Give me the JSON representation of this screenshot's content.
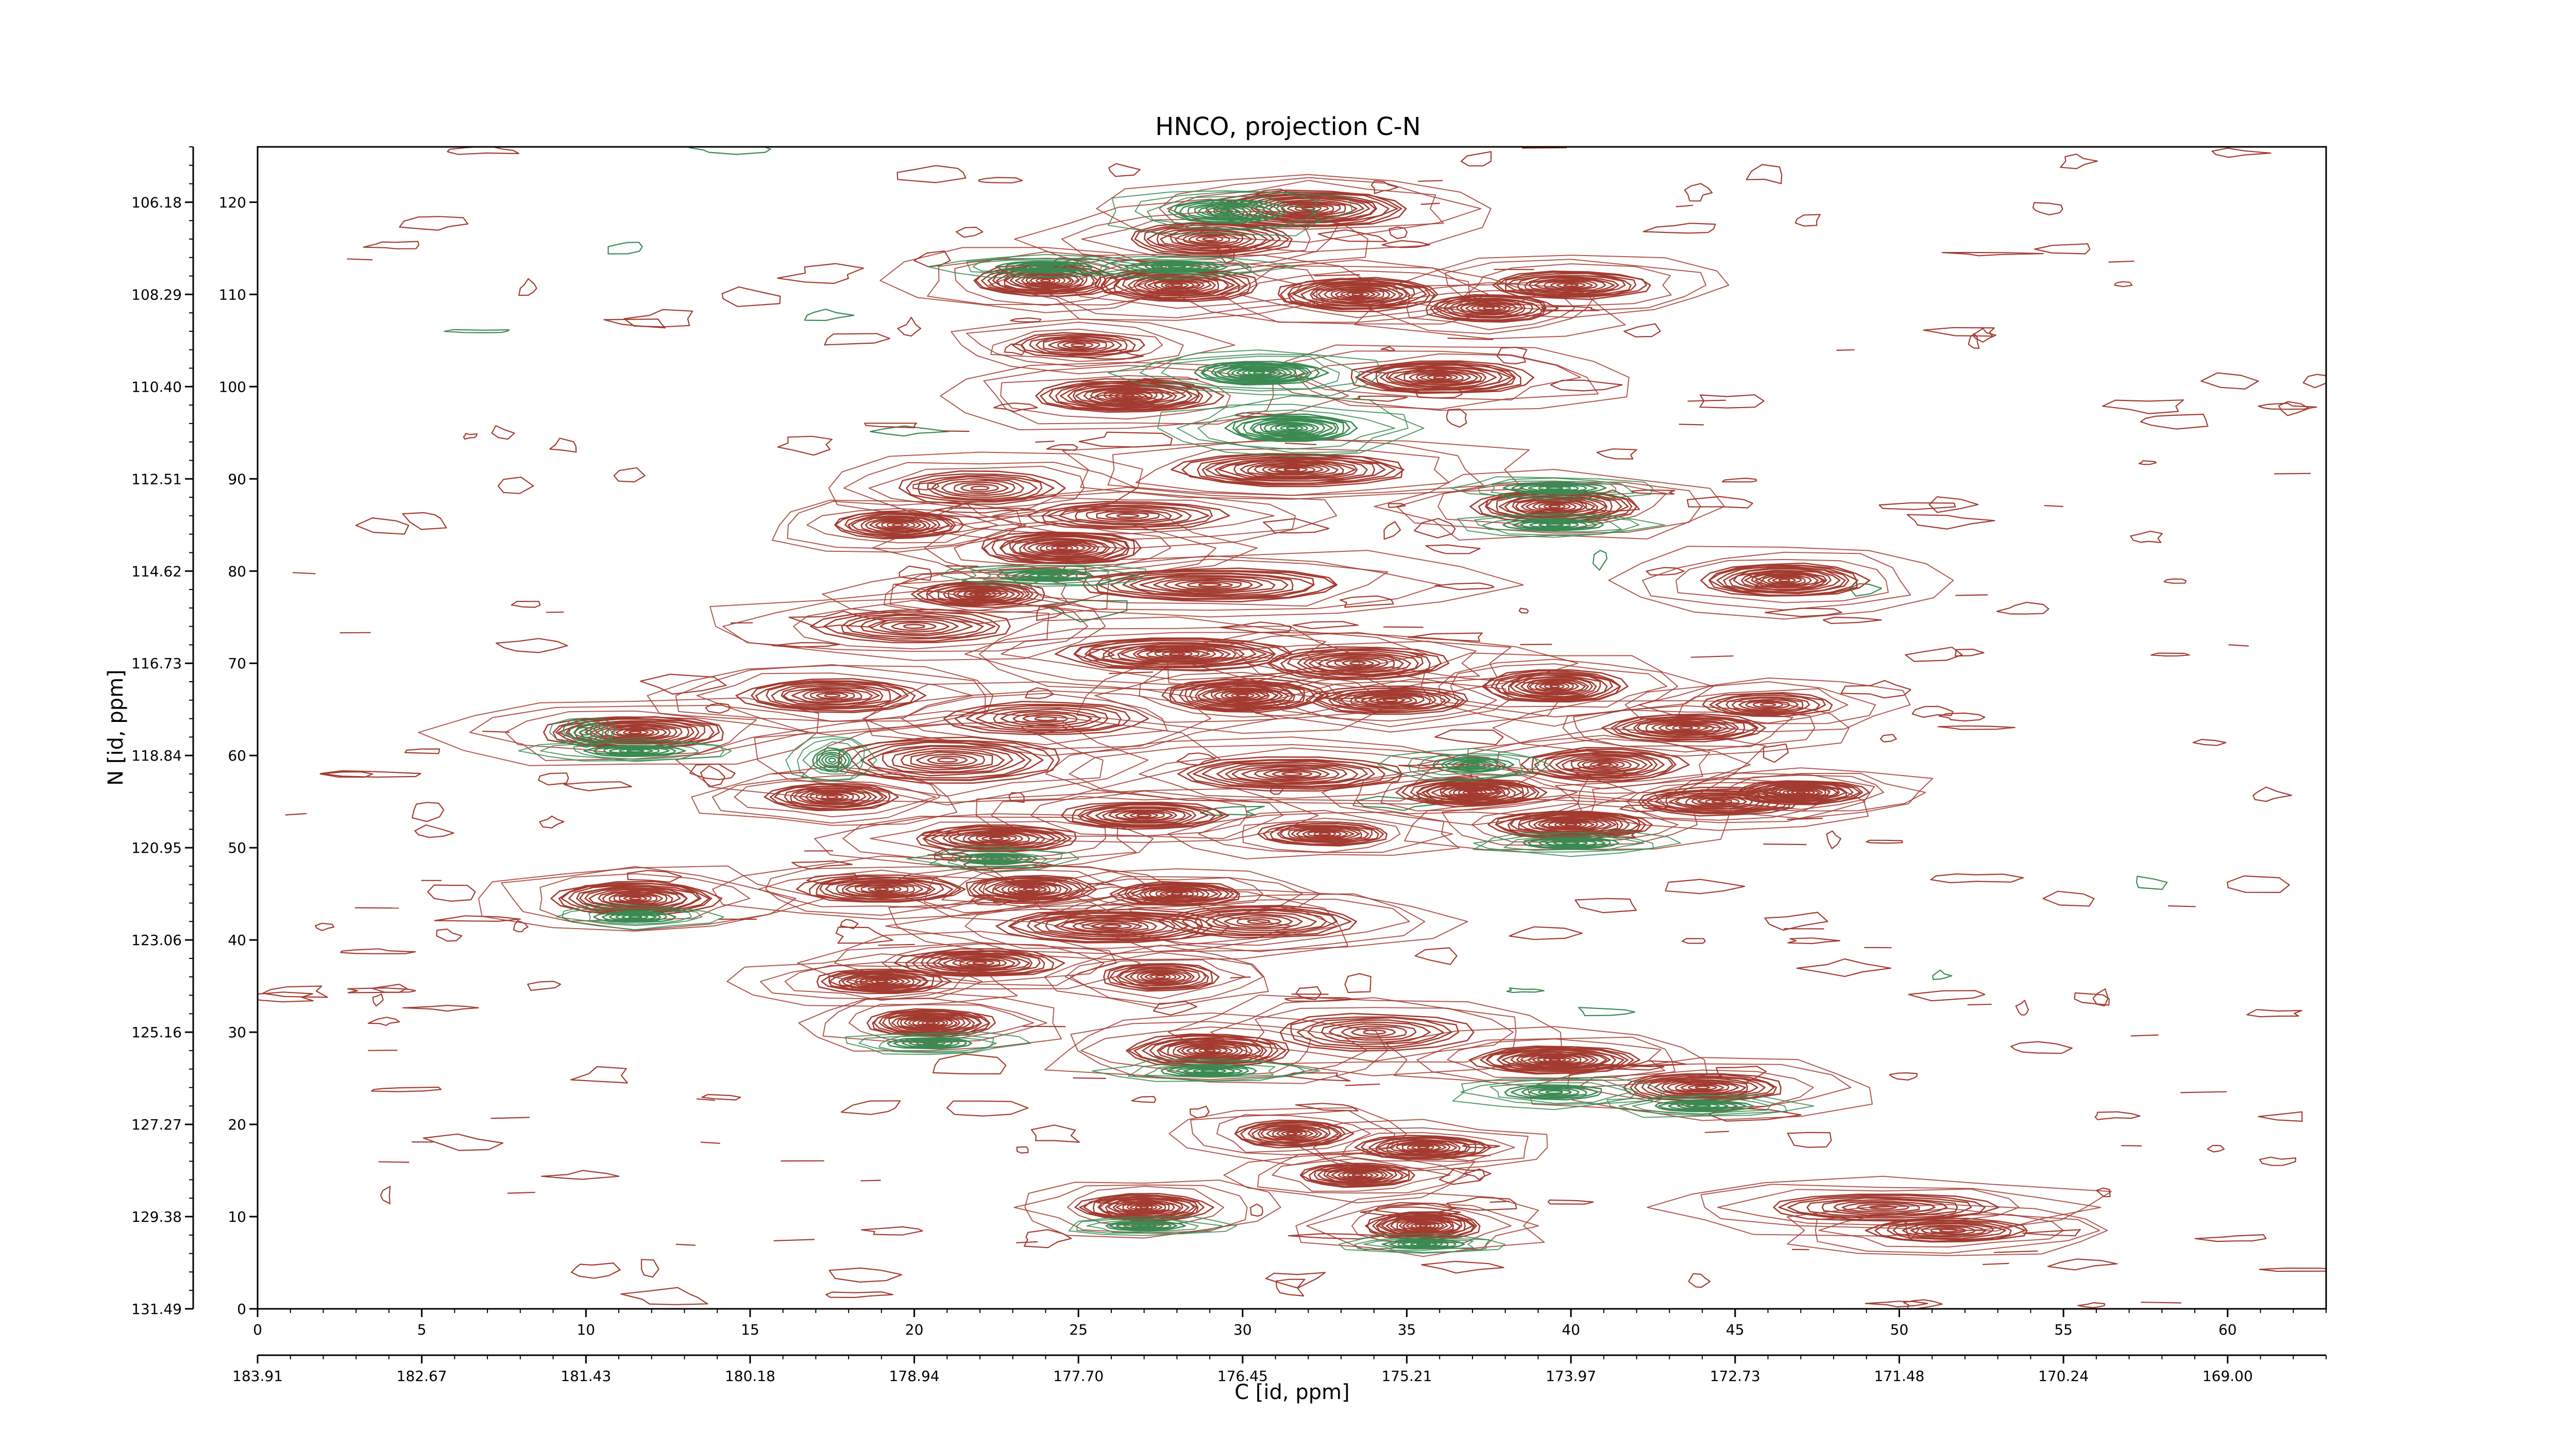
{
  "chart_data": {
    "type": "contour",
    "title": "HNCO, projection C-N",
    "xlabel": "C [id, ppm]",
    "ylabel": "N [id, ppm]",
    "xlim": [
      0,
      63
    ],
    "ylim": [
      0,
      126
    ],
    "x_ticks": [
      0,
      5,
      10,
      15,
      20,
      25,
      30,
      35,
      40,
      45,
      50,
      55,
      60
    ],
    "y_ticks": [
      0,
      10,
      20,
      30,
      40,
      50,
      60,
      70,
      80,
      90,
      100,
      110,
      120
    ],
    "x_ppm_ticks": [
      "183.91",
      "182.67",
      "181.43",
      "180.18",
      "178.94",
      "177.70",
      "176.45",
      "175.21",
      "173.97",
      "172.73",
      "171.48",
      "170.24",
      "169.00"
    ],
    "y_ppm_ticks": [
      "131.49",
      "129.38",
      "127.27",
      "125.16",
      "123.06",
      "120.95",
      "118.84",
      "116.73",
      "114.62",
      "112.51",
      "110.40",
      "108.29",
      "106.18"
    ],
    "colors": {
      "positive": "#a33b30",
      "negative": "#3a8a52"
    },
    "grid": false,
    "peaks": [
      {
        "x": 32.0,
        "y": 119.3,
        "rx": 3.0,
        "ry": 2.0,
        "levels": 5,
        "sign": "pos"
      },
      {
        "x": 29.0,
        "y": 116.0,
        "rx": 2.5,
        "ry": 1.8,
        "levels": 4,
        "sign": "pos"
      },
      {
        "x": 24.0,
        "y": 111.5,
        "rx": 2.2,
        "ry": 1.8,
        "levels": 5,
        "sign": "pos"
      },
      {
        "x": 28.0,
        "y": 111.0,
        "rx": 2.5,
        "ry": 1.8,
        "levels": 5,
        "sign": "pos"
      },
      {
        "x": 33.5,
        "y": 110.0,
        "rx": 2.5,
        "ry": 1.8,
        "levels": 5,
        "sign": "pos"
      },
      {
        "x": 37.5,
        "y": 108.5,
        "rx": 2.0,
        "ry": 1.5,
        "levels": 4,
        "sign": "pos"
      },
      {
        "x": 40.0,
        "y": 111.0,
        "rx": 2.5,
        "ry": 1.5,
        "levels": 4,
        "sign": "pos"
      },
      {
        "x": 25.0,
        "y": 104.5,
        "rx": 2.0,
        "ry": 1.3,
        "levels": 3,
        "sign": "pos"
      },
      {
        "x": 26.5,
        "y": 99.0,
        "rx": 2.8,
        "ry": 1.8,
        "levels": 5,
        "sign": "pos"
      },
      {
        "x": 36.0,
        "y": 101.0,
        "rx": 2.8,
        "ry": 1.8,
        "levels": 5,
        "sign": "pos"
      },
      {
        "x": 31.5,
        "y": 91.0,
        "rx": 3.5,
        "ry": 1.8,
        "levels": 5,
        "sign": "pos"
      },
      {
        "x": 39.5,
        "y": 87.0,
        "rx": 2.5,
        "ry": 1.8,
        "levels": 5,
        "sign": "pos"
      },
      {
        "x": 22.0,
        "y": 89.0,
        "rx": 2.5,
        "ry": 1.8,
        "levels": 3,
        "sign": "pos"
      },
      {
        "x": 19.5,
        "y": 85.0,
        "rx": 2.0,
        "ry": 1.5,
        "levels": 4,
        "sign": "pos"
      },
      {
        "x": 24.5,
        "y": 82.5,
        "rx": 2.5,
        "ry": 1.8,
        "levels": 5,
        "sign": "pos"
      },
      {
        "x": 26.5,
        "y": 86.0,
        "rx": 3.0,
        "ry": 1.5,
        "levels": 3,
        "sign": "pos"
      },
      {
        "x": 46.5,
        "y": 79.0,
        "rx": 2.5,
        "ry": 1.8,
        "levels": 5,
        "sign": "pos"
      },
      {
        "x": 22.0,
        "y": 77.5,
        "rx": 2.0,
        "ry": 1.4,
        "levels": 4,
        "sign": "pos"
      },
      {
        "x": 29.0,
        "y": 78.5,
        "rx": 4.0,
        "ry": 1.8,
        "levels": 4,
        "sign": "pos"
      },
      {
        "x": 20.0,
        "y": 74.0,
        "rx": 3.0,
        "ry": 1.8,
        "levels": 3,
        "sign": "pos"
      },
      {
        "x": 28.0,
        "y": 71.0,
        "rx": 3.5,
        "ry": 1.8,
        "levels": 5,
        "sign": "pos"
      },
      {
        "x": 33.5,
        "y": 70.0,
        "rx": 2.8,
        "ry": 1.8,
        "levels": 4,
        "sign": "pos"
      },
      {
        "x": 17.5,
        "y": 66.5,
        "rx": 2.8,
        "ry": 1.8,
        "levels": 4,
        "sign": "pos"
      },
      {
        "x": 30.0,
        "y": 66.5,
        "rx": 2.5,
        "ry": 1.8,
        "levels": 5,
        "sign": "pos"
      },
      {
        "x": 34.5,
        "y": 66.0,
        "rx": 2.5,
        "ry": 1.5,
        "levels": 4,
        "sign": "pos"
      },
      {
        "x": 39.5,
        "y": 67.5,
        "rx": 2.2,
        "ry": 1.8,
        "levels": 5,
        "sign": "pos"
      },
      {
        "x": 11.5,
        "y": 62.5,
        "rx": 2.8,
        "ry": 1.8,
        "levels": 5,
        "sign": "pos"
      },
      {
        "x": 24.0,
        "y": 64.0,
        "rx": 3.0,
        "ry": 1.8,
        "levels": 3,
        "sign": "pos"
      },
      {
        "x": 43.5,
        "y": 63.0,
        "rx": 2.5,
        "ry": 1.5,
        "levels": 4,
        "sign": "pos"
      },
      {
        "x": 46.0,
        "y": 65.5,
        "rx": 2.0,
        "ry": 1.3,
        "levels": 3,
        "sign": "pos"
      },
      {
        "x": 21.0,
        "y": 59.5,
        "rx": 3.5,
        "ry": 2.5,
        "levels": 4,
        "sign": "pos"
      },
      {
        "x": 31.5,
        "y": 58.0,
        "rx": 3.5,
        "ry": 1.8,
        "levels": 4,
        "sign": "pos"
      },
      {
        "x": 37.0,
        "y": 56.0,
        "rx": 2.2,
        "ry": 1.5,
        "levels": 5,
        "sign": "pos"
      },
      {
        "x": 41.0,
        "y": 59.0,
        "rx": 2.5,
        "ry": 1.8,
        "levels": 4,
        "sign": "pos"
      },
      {
        "x": 44.5,
        "y": 55.0,
        "rx": 2.5,
        "ry": 1.5,
        "levels": 4,
        "sign": "pos"
      },
      {
        "x": 47.0,
        "y": 56.0,
        "rx": 2.0,
        "ry": 1.3,
        "levels": 5,
        "sign": "pos"
      },
      {
        "x": 17.5,
        "y": 55.5,
        "rx": 2.0,
        "ry": 1.5,
        "levels": 4,
        "sign": "pos"
      },
      {
        "x": 22.5,
        "y": 51.0,
        "rx": 2.5,
        "ry": 1.5,
        "levels": 4,
        "sign": "pos"
      },
      {
        "x": 27.0,
        "y": 53.5,
        "rx": 2.5,
        "ry": 1.5,
        "levels": 4,
        "sign": "pos"
      },
      {
        "x": 32.5,
        "y": 51.5,
        "rx": 2.0,
        "ry": 1.3,
        "levels": 4,
        "sign": "pos"
      },
      {
        "x": 40.0,
        "y": 52.5,
        "rx": 2.5,
        "ry": 1.5,
        "levels": 5,
        "sign": "pos"
      },
      {
        "x": 11.5,
        "y": 44.5,
        "rx": 2.5,
        "ry": 1.8,
        "levels": 5,
        "sign": "pos"
      },
      {
        "x": 19.0,
        "y": 45.5,
        "rx": 2.5,
        "ry": 1.5,
        "levels": 4,
        "sign": "pos"
      },
      {
        "x": 23.5,
        "y": 45.5,
        "rx": 2.0,
        "ry": 1.5,
        "levels": 4,
        "sign": "pos"
      },
      {
        "x": 28.0,
        "y": 45.0,
        "rx": 2.0,
        "ry": 1.3,
        "levels": 4,
        "sign": "pos"
      },
      {
        "x": 26.0,
        "y": 41.5,
        "rx": 3.5,
        "ry": 1.8,
        "levels": 4,
        "sign": "pos"
      },
      {
        "x": 30.5,
        "y": 42.0,
        "rx": 3.0,
        "ry": 1.8,
        "levels": 3,
        "sign": "pos"
      },
      {
        "x": 19.0,
        "y": 35.5,
        "rx": 2.0,
        "ry": 1.3,
        "levels": 4,
        "sign": "pos"
      },
      {
        "x": 22.0,
        "y": 37.5,
        "rx": 2.5,
        "ry": 1.5,
        "levels": 4,
        "sign": "pos"
      },
      {
        "x": 27.5,
        "y": 36.0,
        "rx": 1.8,
        "ry": 1.5,
        "levels": 4,
        "sign": "pos"
      },
      {
        "x": 20.5,
        "y": 31.0,
        "rx": 2.0,
        "ry": 1.5,
        "levels": 5,
        "sign": "pos"
      },
      {
        "x": 29.0,
        "y": 28.0,
        "rx": 2.5,
        "ry": 1.8,
        "levels": 5,
        "sign": "pos"
      },
      {
        "x": 34.0,
        "y": 30.0,
        "rx": 3.0,
        "ry": 2.0,
        "levels": 3,
        "sign": "pos"
      },
      {
        "x": 39.5,
        "y": 27.0,
        "rx": 2.5,
        "ry": 1.5,
        "levels": 5,
        "sign": "pos"
      },
      {
        "x": 44.0,
        "y": 24.0,
        "rx": 2.5,
        "ry": 1.5,
        "levels": 4,
        "sign": "pos"
      },
      {
        "x": 31.5,
        "y": 19.0,
        "rx": 1.8,
        "ry": 1.5,
        "levels": 4,
        "sign": "pos"
      },
      {
        "x": 35.5,
        "y": 17.5,
        "rx": 2.0,
        "ry": 1.3,
        "levels": 4,
        "sign": "pos"
      },
      {
        "x": 33.5,
        "y": 14.5,
        "rx": 1.8,
        "ry": 1.3,
        "levels": 4,
        "sign": "pos"
      },
      {
        "x": 27.0,
        "y": 11.0,
        "rx": 2.0,
        "ry": 1.5,
        "levels": 5,
        "sign": "pos"
      },
      {
        "x": 35.5,
        "y": 9.0,
        "rx": 1.8,
        "ry": 1.5,
        "levels": 5,
        "sign": "pos"
      },
      {
        "x": 49.5,
        "y": 11.0,
        "rx": 3.5,
        "ry": 1.5,
        "levels": 3,
        "sign": "pos"
      },
      {
        "x": 51.5,
        "y": 8.5,
        "rx": 2.5,
        "ry": 1.3,
        "levels": 3,
        "sign": "pos"
      },
      {
        "x": 29.5,
        "y": 119.0,
        "rx": 1.8,
        "ry": 1.3,
        "levels": 3,
        "sign": "neg"
      },
      {
        "x": 30.5,
        "y": 101.5,
        "rx": 2.0,
        "ry": 1.3,
        "levels": 4,
        "sign": "neg"
      },
      {
        "x": 31.5,
        "y": 95.5,
        "rx": 2.0,
        "ry": 1.5,
        "levels": 4,
        "sign": "neg"
      },
      {
        "x": 24.0,
        "y": 113.0,
        "rx": 1.5,
        "ry": 0.6,
        "levels": 2,
        "sign": "neg"
      },
      {
        "x": 28.0,
        "y": 113.0,
        "rx": 1.5,
        "ry": 0.6,
        "levels": 2,
        "sign": "neg"
      },
      {
        "x": 39.5,
        "y": 85.0,
        "rx": 1.5,
        "ry": 0.6,
        "levels": 2,
        "sign": "neg"
      },
      {
        "x": 39.5,
        "y": 89.0,
        "rx": 1.5,
        "ry": 0.6,
        "levels": 2,
        "sign": "neg"
      },
      {
        "x": 11.5,
        "y": 60.5,
        "rx": 1.5,
        "ry": 0.6,
        "levels": 2,
        "sign": "neg"
      },
      {
        "x": 11.5,
        "y": 42.5,
        "rx": 1.2,
        "ry": 0.6,
        "levels": 2,
        "sign": "neg"
      },
      {
        "x": 20.5,
        "y": 28.8,
        "rx": 1.3,
        "ry": 0.6,
        "levels": 2,
        "sign": "neg"
      },
      {
        "x": 39.5,
        "y": 23.5,
        "rx": 1.5,
        "ry": 0.8,
        "levels": 2,
        "sign": "neg"
      },
      {
        "x": 44.0,
        "y": 22.0,
        "rx": 1.5,
        "ry": 0.6,
        "levels": 2,
        "sign": "neg"
      },
      {
        "x": 37.0,
        "y": 59.0,
        "rx": 1.2,
        "ry": 0.8,
        "levels": 2,
        "sign": "neg"
      },
      {
        "x": 17.5,
        "y": 59.5,
        "rx": 0.6,
        "ry": 1.3,
        "levels": 2,
        "sign": "neg"
      },
      {
        "x": 35.5,
        "y": 7.0,
        "rx": 1.2,
        "ry": 0.5,
        "levels": 2,
        "sign": "neg"
      },
      {
        "x": 27.0,
        "y": 9.0,
        "rx": 1.2,
        "ry": 0.5,
        "levels": 2,
        "sign": "neg"
      },
      {
        "x": 24.0,
        "y": 79.5,
        "rx": 1.5,
        "ry": 0.6,
        "levels": 2,
        "sign": "neg"
      },
      {
        "x": 40.0,
        "y": 50.5,
        "rx": 1.5,
        "ry": 0.6,
        "levels": 2,
        "sign": "neg"
      },
      {
        "x": 22.5,
        "y": 48.8,
        "rx": 1.2,
        "ry": 0.6,
        "levels": 2,
        "sign": "neg"
      },
      {
        "x": 29.0,
        "y": 25.8,
        "rx": 1.5,
        "ry": 0.6,
        "levels": 2,
        "sign": "neg"
      },
      {
        "x": 10.0,
        "y": 62.5,
        "rx": 0.5,
        "ry": 0.8,
        "levels": 1,
        "sign": "neg"
      }
    ]
  }
}
